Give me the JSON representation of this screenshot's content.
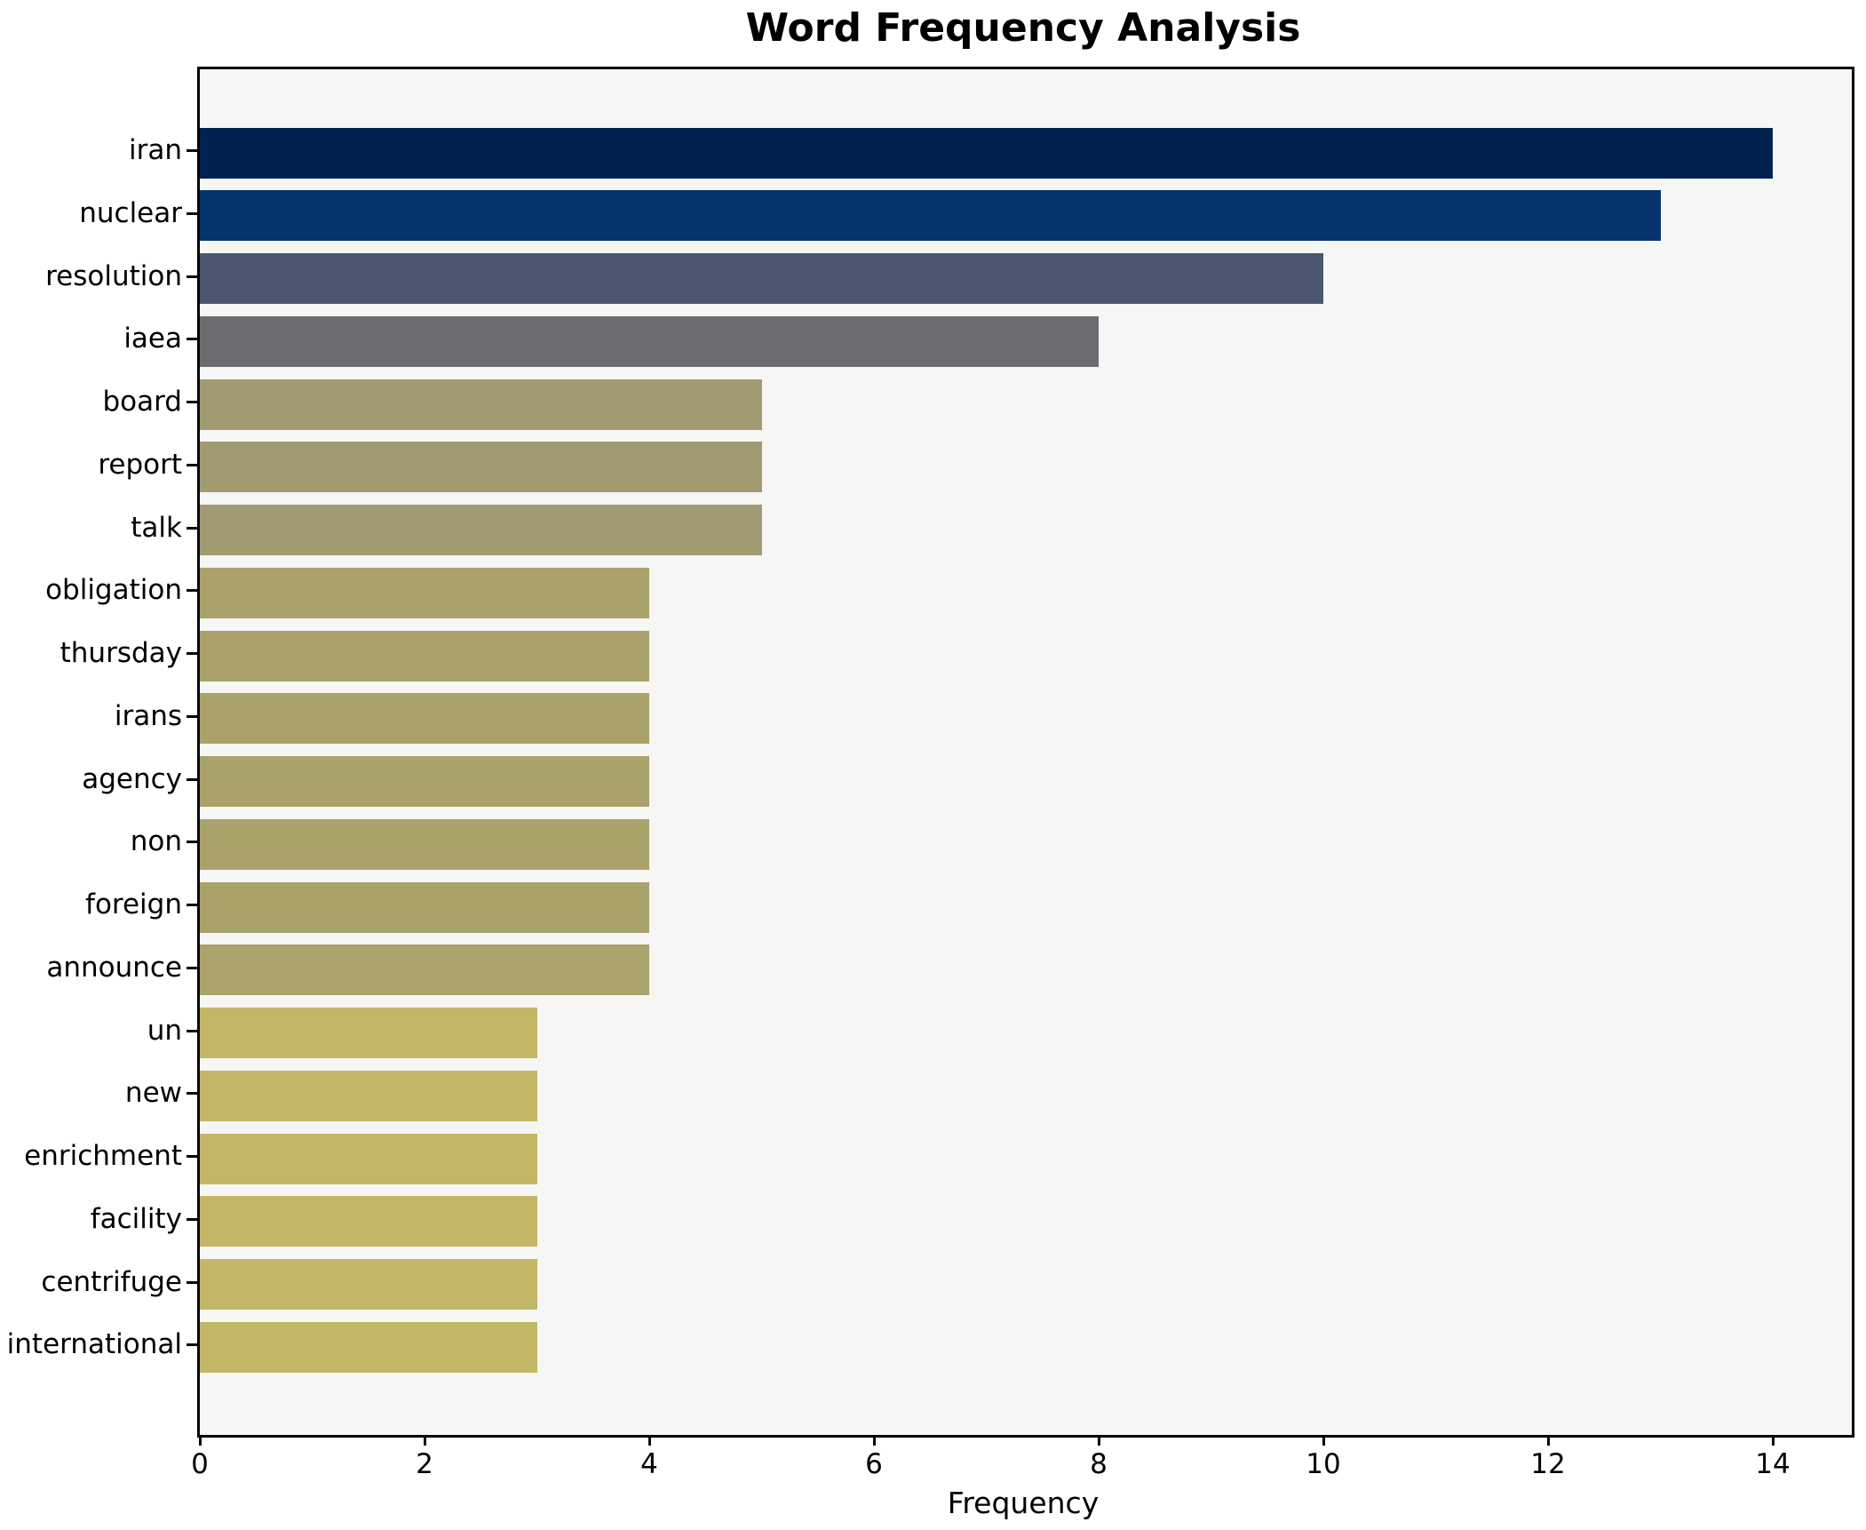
{
  "figure": {
    "title": "Word Frequency Analysis",
    "background": "#ffffff"
  },
  "chart_data": {
    "type": "bar",
    "orientation": "horizontal",
    "title": "Word Frequency Analysis",
    "xlabel": "Frequency",
    "ylabel": "",
    "categories": [
      "iran",
      "nuclear",
      "resolution",
      "iaea",
      "board",
      "report",
      "talk",
      "obligation",
      "thursday",
      "irans",
      "agency",
      "non",
      "foreign",
      "announce",
      "un",
      "new",
      "enrichment",
      "facility",
      "centrifuge",
      "international"
    ],
    "values": [
      14,
      13,
      10,
      8,
      5,
      5,
      5,
      4,
      4,
      4,
      4,
      4,
      4,
      4,
      3,
      3,
      3,
      3,
      3,
      3
    ],
    "bar_colors": [
      "#00224f",
      "#05336d",
      "#4c566e",
      "#6a6c70",
      "#a29a71",
      "#a29a71",
      "#a19a72",
      "#aaa26b",
      "#aaa26b",
      "#aaa26b",
      "#aaa26b",
      "#aaa26b",
      "#aaa26b",
      "#aba36c",
      "#c4b667",
      "#c4b667",
      "#c4b667",
      "#c4b667",
      "#c4b667",
      "#c4b667"
    ],
    "xlim": [
      0,
      14.7
    ],
    "xticks": [
      0,
      2,
      4,
      6,
      8,
      10,
      12,
      14
    ],
    "grid": false,
    "legend": "none",
    "plot_background": "#f6f6f5",
    "axis_color": "#000000"
  }
}
